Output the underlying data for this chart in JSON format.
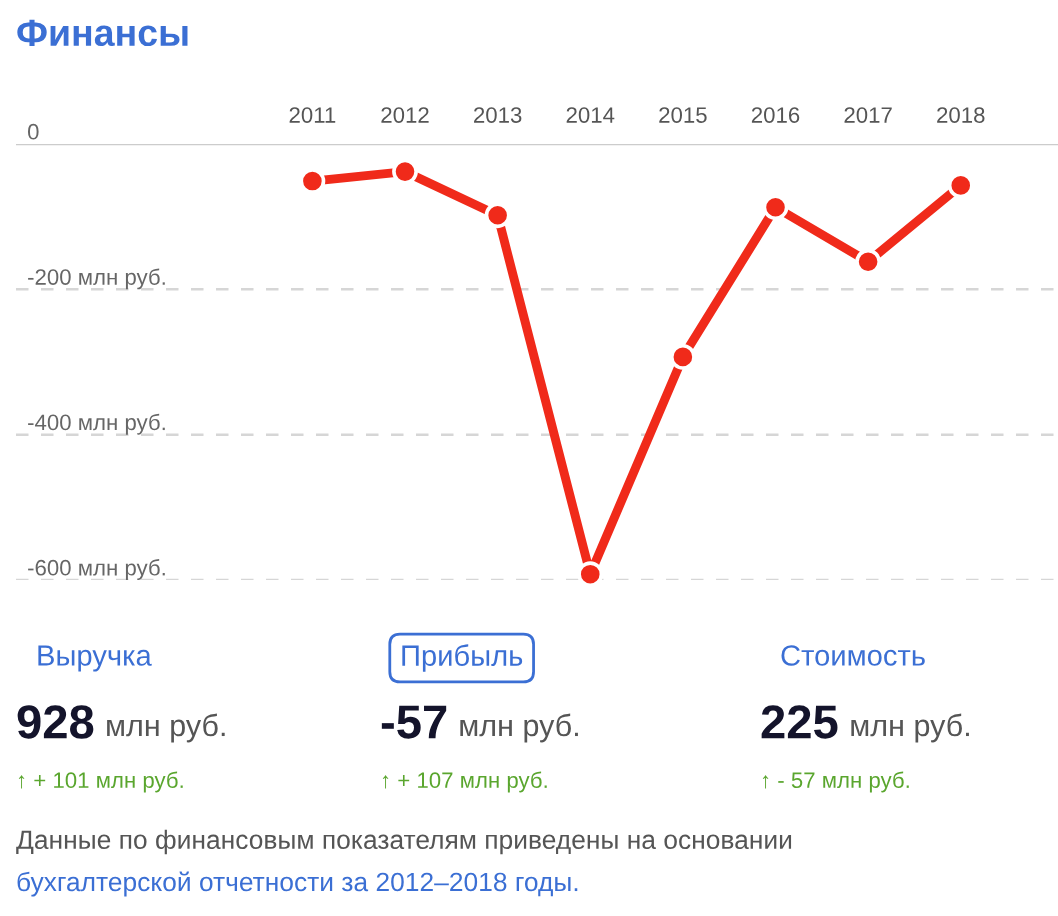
{
  "chart_data": [
    {
      "type": "line",
      "title": "Финансы",
      "categories": [
        "2011",
        "2012",
        "2013",
        "2014",
        "2015",
        "2016",
        "2017",
        "2018"
      ],
      "series": [
        {
          "color": "#f02a1a",
          "values": [
            -51,
            -38,
            -98,
            -592,
            -293,
            -87,
            -162,
            -57
          ]
        }
      ],
      "ylim": [
        -600,
        0
      ],
      "yticks": [
        0,
        {
          "value": -200,
          "label": "-200 млн руб."
        },
        {
          "value": -400,
          "label": "-400 млн руб."
        },
        {
          "value": -600,
          "label": "-600 млн руб."
        }
      ],
      "grid": "y",
      "marker": "circle",
      "line_style": "solid"
    },
    {
      "type": "other",
      "annotations": [
        "Выручка",
        "928 млн руб.",
        "↑ + 101 млн руб.",
        "Прибыль",
        "-57 млн руб.",
        "↑ + 107 млн руб.",
        "Стоимость",
        "225 млн руб.",
        "↑ - 57 млн руб.",
        "Данные по финансовым показателям приведены на основании",
        "бухгалтерской отчетности за 2012–2018 годы."
      ]
    }
  ]
}
